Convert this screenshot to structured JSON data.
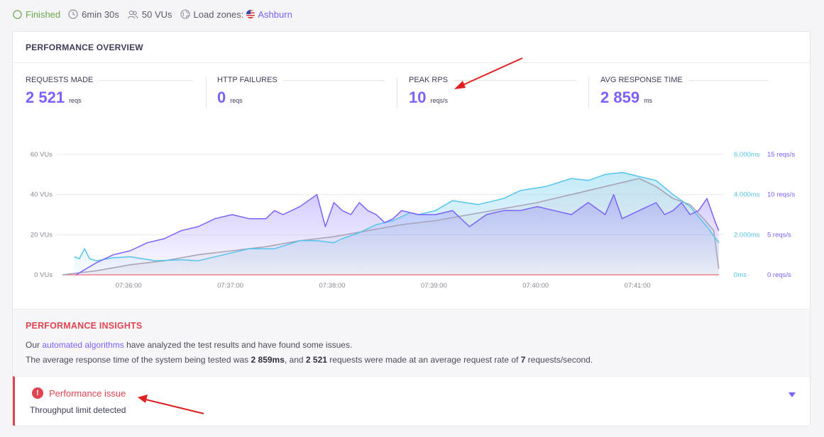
{
  "topbar": {
    "status": "Finished",
    "duration": "6min 30s",
    "vus": "50 VUs",
    "load_zones_label": "Load zones:",
    "load_zone": "Ashburn",
    "icons": [
      "check-circle-icon",
      "clock-icon",
      "users-icon",
      "globe-icon",
      "us-flag-icon"
    ]
  },
  "overview": {
    "title": "PERFORMANCE OVERVIEW",
    "metrics": [
      {
        "label": "REQUESTS MADE",
        "value": "2 521",
        "unit": "reqs"
      },
      {
        "label": "HTTP FAILURES",
        "value": "0",
        "unit": "reqs"
      },
      {
        "label": "PEAK RPS",
        "value": "10",
        "unit": "reqs/s"
      },
      {
        "label": "AVG RESPONSE TIME",
        "value": "2 859",
        "unit": "ms"
      }
    ]
  },
  "chart_data": {
    "type": "line",
    "x_tick_labels": [
      "07:36:00",
      "07:37:00",
      "07:38:00",
      "07:39:00",
      "07:40:00",
      "07:41:00"
    ],
    "y_left_ticks": [
      "0 VUs",
      "20 VUs",
      "40 VUs",
      "60 VUs"
    ],
    "y_right1_ticks": [
      "0ms",
      "2.000ms",
      "4.000ms",
      "6.000ms"
    ],
    "y_right2_ticks": [
      "0 reqs/s",
      "5 reqs/s",
      "10 reqs/s",
      "15 reqs/s"
    ],
    "ylim_left": [
      0,
      60
    ],
    "ylim_response_ms": [
      0,
      6000
    ],
    "ylim_rps": [
      0,
      15
    ],
    "x_range_seconds": [
      0,
      390
    ],
    "grid": true,
    "colors": {
      "vus": "#a9a4b8",
      "response_time": "#55c4ee",
      "rps": "#7b61ff",
      "failures": "#f06a7a"
    },
    "series": [
      {
        "key": "vus",
        "x": [
          0,
          20,
          40,
          60,
          80,
          100,
          120,
          140,
          160,
          180,
          200,
          220,
          240,
          260,
          280,
          300,
          320,
          330,
          340,
          350,
          360,
          370,
          378,
          384,
          387
        ],
        "values": [
          0,
          2,
          5,
          7,
          10,
          12,
          14,
          17,
          19,
          22,
          25,
          27,
          30,
          33,
          36,
          40,
          44,
          46,
          48,
          44,
          38,
          35,
          28,
          22,
          3
        ]
      },
      {
        "key": "response_time",
        "x": [
          7,
          10,
          13,
          16,
          20,
          30,
          40,
          55,
          70,
          80,
          95,
          110,
          125,
          140,
          150,
          160,
          165,
          175,
          185,
          195,
          205,
          210,
          220,
          230,
          245,
          260,
          270,
          285,
          300,
          310,
          320,
          330,
          340,
          350,
          360,
          370,
          380,
          387
        ],
        "values": [
          900,
          800,
          1300,
          800,
          700,
          850,
          900,
          700,
          750,
          700,
          1000,
          1300,
          1300,
          1700,
          1700,
          1600,
          1800,
          2100,
          2500,
          2700,
          3100,
          3000,
          3200,
          3700,
          3500,
          3800,
          4200,
          4400,
          4800,
          4700,
          5000,
          5100,
          4900,
          4700,
          4000,
          3400,
          2400,
          1600
        ]
      },
      {
        "key": "rps",
        "x": [
          8,
          12,
          20,
          30,
          40,
          50,
          60,
          70,
          80,
          90,
          100,
          110,
          120,
          125,
          130,
          140,
          150,
          155,
          160,
          165,
          170,
          175,
          180,
          185,
          190,
          195,
          200,
          210,
          220,
          230,
          240,
          250,
          260,
          270,
          280,
          290,
          300,
          310,
          320,
          325,
          330,
          340,
          350,
          355,
          360,
          365,
          370,
          375,
          380,
          385,
          387
        ],
        "values": [
          0,
          0.5,
          1.5,
          2.5,
          3,
          4,
          4.5,
          5.5,
          6,
          7,
          7.5,
          7,
          7,
          8,
          7.5,
          8.5,
          10,
          6,
          9,
          8,
          7.5,
          9,
          8,
          7.5,
          6.5,
          7,
          8,
          7.5,
          7.5,
          8,
          6,
          7.5,
          8,
          8,
          8.5,
          8,
          7.5,
          9,
          7.5,
          10,
          7,
          8,
          9,
          7.5,
          8,
          9,
          7.5,
          8,
          9.5,
          6.5,
          5.5
        ]
      },
      {
        "key": "failures",
        "x": [
          0,
          387
        ],
        "values": [
          0,
          0
        ]
      }
    ]
  },
  "insights": {
    "title": "PERFORMANCE INSIGHTS",
    "line1_pre": "Our ",
    "line1_link": "automated algorithms",
    "line1_post": " have analyzed the test results and have found some issues.",
    "line2_a": "The average response time of the system being tested was ",
    "line2_b": "2 859ms",
    "line2_c": ", and ",
    "line2_d": "2 521",
    "line2_e": " requests were made at an average request rate of ",
    "line2_f": "7",
    "line2_g": " requests/second."
  },
  "issue": {
    "icon_text": "!",
    "title": "Performance issue",
    "subtitle": "Throughput limit detected"
  },
  "annotations": {
    "arrow_color": "#e02020"
  }
}
